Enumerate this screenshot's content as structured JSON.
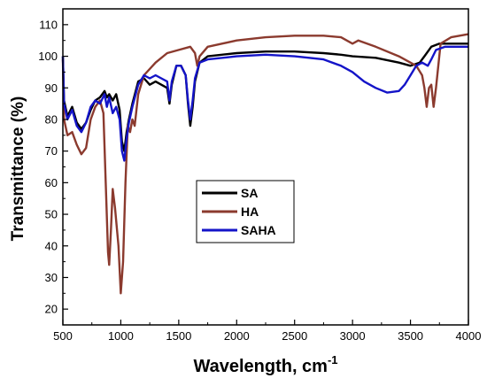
{
  "chart_data": {
    "type": "line",
    "xlabel": "Wavelength, cm",
    "xlabel_superscript": "-1",
    "ylabel": "Transmittance (%)",
    "xlim": [
      500,
      4000
    ],
    "ylim": [
      15,
      115
    ],
    "xticks": [
      500,
      1000,
      1500,
      2000,
      2500,
      3000,
      3500,
      4000
    ],
    "yticks": [
      20,
      30,
      40,
      50,
      60,
      70,
      80,
      90,
      100,
      110
    ],
    "grid": false,
    "legend_position": "center-left",
    "series": [
      {
        "name": "SA",
        "color": "#000000",
        "points": [
          [
            500,
            100
          ],
          [
            510,
            86
          ],
          [
            540,
            81
          ],
          [
            580,
            84
          ],
          [
            620,
            79
          ],
          [
            660,
            77
          ],
          [
            700,
            79
          ],
          [
            740,
            83
          ],
          [
            780,
            86
          ],
          [
            820,
            87
          ],
          [
            860,
            89
          ],
          [
            880,
            87
          ],
          [
            900,
            88
          ],
          [
            930,
            86
          ],
          [
            960,
            88
          ],
          [
            990,
            83
          ],
          [
            1010,
            73
          ],
          [
            1030,
            70
          ],
          [
            1050,
            76
          ],
          [
            1070,
            80
          ],
          [
            1100,
            85
          ],
          [
            1150,
            92
          ],
          [
            1200,
            93
          ],
          [
            1250,
            91
          ],
          [
            1300,
            92
          ],
          [
            1350,
            91
          ],
          [
            1400,
            90
          ],
          [
            1420,
            85
          ],
          [
            1440,
            91
          ],
          [
            1480,
            97
          ],
          [
            1520,
            97
          ],
          [
            1560,
            94
          ],
          [
            1580,
            85
          ],
          [
            1600,
            78
          ],
          [
            1620,
            84
          ],
          [
            1640,
            92
          ],
          [
            1680,
            98
          ],
          [
            1750,
            100
          ],
          [
            2000,
            101
          ],
          [
            2250,
            101.5
          ],
          [
            2500,
            101.5
          ],
          [
            2750,
            101
          ],
          [
            2900,
            100.5
          ],
          [
            3000,
            100
          ],
          [
            3200,
            99.5
          ],
          [
            3400,
            98
          ],
          [
            3500,
            97
          ],
          [
            3580,
            98
          ],
          [
            3620,
            100
          ],
          [
            3680,
            103
          ],
          [
            3750,
            104
          ],
          [
            4000,
            104
          ]
        ]
      },
      {
        "name": "HA",
        "color": "#8B3A2E",
        "points": [
          [
            500,
            99
          ],
          [
            510,
            80
          ],
          [
            540,
            75
          ],
          [
            580,
            76
          ],
          [
            620,
            72
          ],
          [
            660,
            69
          ],
          [
            700,
            71
          ],
          [
            740,
            80
          ],
          [
            780,
            84
          ],
          [
            820,
            86
          ],
          [
            850,
            82
          ],
          [
            870,
            60
          ],
          [
            890,
            38
          ],
          [
            900,
            34
          ],
          [
            915,
            45
          ],
          [
            930,
            58
          ],
          [
            950,
            52
          ],
          [
            980,
            40
          ],
          [
            1000,
            25
          ],
          [
            1020,
            35
          ],
          [
            1040,
            60
          ],
          [
            1060,
            78
          ],
          [
            1080,
            76
          ],
          [
            1100,
            80
          ],
          [
            1120,
            78
          ],
          [
            1150,
            88
          ],
          [
            1200,
            94
          ],
          [
            1300,
            98
          ],
          [
            1400,
            101
          ],
          [
            1500,
            102
          ],
          [
            1600,
            103
          ],
          [
            1640,
            101
          ],
          [
            1660,
            97
          ],
          [
            1680,
            100
          ],
          [
            1750,
            103
          ],
          [
            2000,
            105
          ],
          [
            2250,
            106
          ],
          [
            2500,
            106.5
          ],
          [
            2750,
            106.5
          ],
          [
            2900,
            106
          ],
          [
            2950,
            105
          ],
          [
            3000,
            104
          ],
          [
            3050,
            105
          ],
          [
            3200,
            103
          ],
          [
            3400,
            100
          ],
          [
            3550,
            97
          ],
          [
            3600,
            94
          ],
          [
            3620,
            90
          ],
          [
            3640,
            84
          ],
          [
            3660,
            90
          ],
          [
            3680,
            91
          ],
          [
            3700,
            84
          ],
          [
            3720,
            90
          ],
          [
            3760,
            104
          ],
          [
            3850,
            106
          ],
          [
            4000,
            107
          ]
        ]
      },
      {
        "name": "SAHA",
        "color": "#1414C8",
        "points": [
          [
            500,
            100
          ],
          [
            510,
            85
          ],
          [
            540,
            80
          ],
          [
            580,
            83
          ],
          [
            620,
            78
          ],
          [
            660,
            76
          ],
          [
            700,
            79
          ],
          [
            740,
            84
          ],
          [
            780,
            86
          ],
          [
            820,
            85
          ],
          [
            860,
            88
          ],
          [
            880,
            84
          ],
          [
            900,
            87
          ],
          [
            930,
            82
          ],
          [
            960,
            84
          ],
          [
            990,
            80
          ],
          [
            1010,
            70
          ],
          [
            1030,
            67
          ],
          [
            1050,
            74
          ],
          [
            1070,
            79
          ],
          [
            1100,
            84
          ],
          [
            1150,
            91
          ],
          [
            1200,
            94
          ],
          [
            1250,
            93
          ],
          [
            1300,
            94
          ],
          [
            1350,
            93
          ],
          [
            1400,
            92
          ],
          [
            1420,
            86
          ],
          [
            1440,
            92
          ],
          [
            1480,
            97
          ],
          [
            1520,
            97
          ],
          [
            1560,
            94
          ],
          [
            1580,
            86
          ],
          [
            1600,
            80
          ],
          [
            1620,
            86
          ],
          [
            1640,
            93
          ],
          [
            1680,
            98
          ],
          [
            1750,
            99
          ],
          [
            2000,
            100
          ],
          [
            2250,
            100.5
          ],
          [
            2500,
            100
          ],
          [
            2750,
            99
          ],
          [
            2900,
            97
          ],
          [
            3000,
            95
          ],
          [
            3100,
            92
          ],
          [
            3200,
            90
          ],
          [
            3300,
            88.5
          ],
          [
            3400,
            89
          ],
          [
            3450,
            91
          ],
          [
            3500,
            94
          ],
          [
            3550,
            97
          ],
          [
            3600,
            98
          ],
          [
            3650,
            97
          ],
          [
            3680,
            99
          ],
          [
            3720,
            102
          ],
          [
            3800,
            103
          ],
          [
            4000,
            103
          ]
        ]
      }
    ]
  }
}
